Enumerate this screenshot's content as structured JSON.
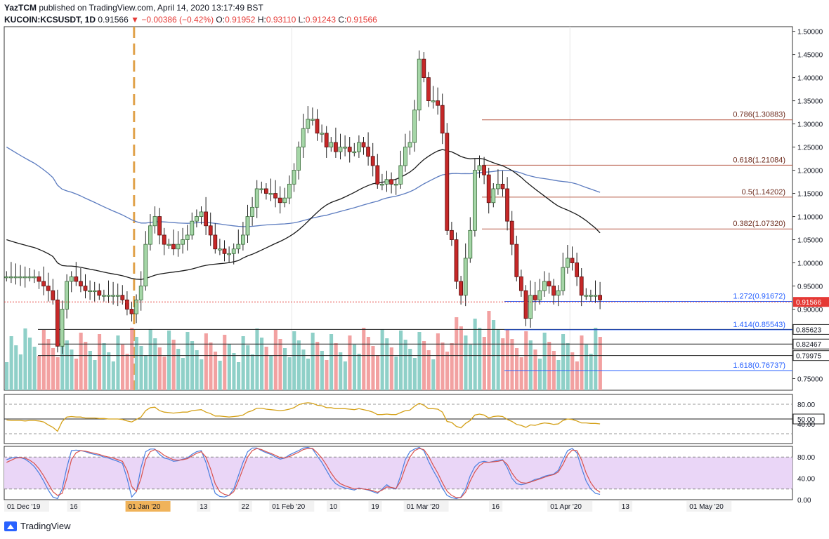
{
  "header": {
    "publisher": "YazTCM",
    "published_text": "published on TradingView.com, April 14, 2020 13:17:49 BST",
    "symbol": "KUCOIN:KCSUSDT, 1D",
    "price": "0.91566",
    "change": "−0.00386 (−0.42%)",
    "o_label": "O:",
    "o_value": "0.91952",
    "h_label": "H:",
    "h_value": "0.93110",
    "l_label": "L:",
    "l_value": "0.91243",
    "c_label": "C:",
    "c_value": "0.91566"
  },
  "footer": {
    "brand": "TradingView"
  },
  "colors": {
    "up": "#a5d6a7",
    "up_border": "#3a6b3a",
    "down": "#c62828",
    "ma1": "#1a1a1a",
    "ma2": "#5b7bbf",
    "rsi": "#d4a017",
    "fib_red": "#b85c48",
    "fib_blue": "#2962ff",
    "stoch_k": "#4a7fe0",
    "stoch_d": "#d9534f",
    "stoch_band": "#ead6f7"
  },
  "chart_data": [
    {
      "type": "candlestick",
      "title": "KCSUSDT, 1D",
      "ylim": [
        0.725,
        1.51
      ],
      "y_ticks": [
        "1.50000",
        "1.45000",
        "1.40000",
        "1.35000",
        "1.30000",
        "1.25000",
        "1.20000",
        "1.15000",
        "1.10000",
        "1.05000",
        "1.00000",
        "0.95000",
        "0.90000",
        "0.75000"
      ],
      "y_tick_values": [
        1.5,
        1.45,
        1.4,
        1.35,
        1.3,
        1.25,
        1.2,
        1.15,
        1.1,
        1.05,
        1.0,
        0.95,
        0.9,
        0.75
      ],
      "x_ticks": [
        "01 Dec '19",
        "16",
        "01 Jan '20",
        "13",
        "22",
        "01 Feb '20",
        "10",
        "19",
        "01 Mar '20",
        "16",
        "01 Apr '20",
        "13",
        "01 May '20"
      ],
      "x_tick_days": [
        0,
        15,
        31,
        43,
        52,
        62,
        71,
        80,
        91,
        106,
        122,
        134,
        152
      ],
      "x_tick_highlight": [
        false,
        false,
        true,
        false,
        false,
        false,
        false,
        false,
        false,
        false,
        false,
        false,
        false
      ],
      "price_label": "0.91566",
      "price": 0.91566,
      "horizontal_levels": [
        {
          "value": 0.85623,
          "label": "0.85623"
        },
        {
          "value": 0.82467,
          "label": "0.82467"
        },
        {
          "value": 0.79975,
          "label": "0.79975"
        }
      ],
      "fib_levels": [
        {
          "label": "0.786(1.30883)",
          "value": 1.30883,
          "color": "red"
        },
        {
          "label": "0.618(1.21084)",
          "value": 1.21084,
          "color": "red"
        },
        {
          "label": "0.5(1.14202)",
          "value": 1.14202,
          "color": "red"
        },
        {
          "label": "0.382(1.07320)",
          "value": 1.0732,
          "color": "red"
        },
        {
          "label": "1.272(0.91672)",
          "value": 0.91672,
          "color": "blue"
        },
        {
          "label": "1.414(0.85543)",
          "value": 0.85543,
          "color": "blue"
        },
        {
          "label": "1.618(0.76737)",
          "value": 0.76737,
          "color": "blue"
        }
      ],
      "candles_close": [
        0.97,
        0.97,
        0.97,
        0.97,
        0.97,
        0.97,
        0.97,
        0.96,
        0.95,
        0.94,
        0.92,
        0.82,
        0.9,
        0.96,
        0.97,
        0.96,
        0.95,
        0.94,
        0.94,
        0.94,
        0.93,
        0.93,
        0.93,
        0.93,
        0.93,
        0.92,
        0.9,
        0.89,
        0.92,
        0.95,
        1.04,
        1.08,
        1.1,
        1.06,
        1.04,
        1.04,
        1.03,
        1.04,
        1.05,
        1.06,
        1.09,
        1.1,
        1.11,
        1.08,
        1.06,
        1.03,
        1.03,
        1.02,
        1.02,
        1.03,
        1.04,
        1.06,
        1.1,
        1.12,
        1.16,
        1.16,
        1.15,
        1.15,
        1.14,
        1.13,
        1.14,
        1.17,
        1.2,
        1.25,
        1.29,
        1.31,
        1.31,
        1.28,
        1.28,
        1.25,
        1.26,
        1.24,
        1.25,
        1.25,
        1.24,
        1.24,
        1.26,
        1.25,
        1.23,
        1.21,
        1.17,
        1.17,
        1.18,
        1.17,
        1.17,
        1.21,
        1.25,
        1.26,
        1.33,
        1.44,
        1.4,
        1.35,
        1.35,
        1.34,
        1.28,
        1.07,
        1.05,
        0.96,
        0.93,
        1.01,
        1.07,
        1.2,
        1.21,
        1.19,
        1.13,
        1.16,
        1.17,
        1.16,
        1.09,
        1.04,
        0.97,
        0.94,
        0.88,
        0.93,
        0.92,
        0.94,
        0.96,
        0.95,
        0.93,
        0.94,
        0.99,
        1.01,
        1.0,
        0.97,
        0.93,
        0.93,
        0.93,
        0.93,
        0.92
      ]
    },
    {
      "type": "bar",
      "title": "Volume",
      "series_note": "volume bars coloured by candle direction"
    },
    {
      "type": "line",
      "title": "RSI",
      "ylim": [
        0,
        100
      ],
      "y_ticks": [
        "80.00",
        "50.00",
        "40.00"
      ],
      "y_tick_values": [
        80,
        50,
        40
      ],
      "level": "50.00",
      "level_value": 50,
      "values": [
        48,
        47,
        47,
        47,
        46,
        47,
        47,
        46,
        44,
        38,
        33,
        25,
        45,
        54,
        55,
        54,
        54,
        52,
        52,
        52,
        51,
        51,
        50,
        50,
        50,
        49,
        46,
        44,
        49,
        54,
        67,
        73,
        74,
        67,
        64,
        63,
        62,
        63,
        64,
        64,
        67,
        68,
        69,
        64,
        61,
        56,
        56,
        55,
        54,
        55,
        56,
        58,
        64,
        67,
        72,
        72,
        70,
        69,
        68,
        67,
        68,
        70,
        73,
        79,
        82,
        83,
        82,
        78,
        77,
        73,
        73,
        71,
        71,
        71,
        70,
        69,
        71,
        69,
        67,
        64,
        59,
        59,
        60,
        59,
        59,
        63,
        67,
        68,
        76,
        82,
        78,
        71,
        71,
        70,
        64,
        45,
        43,
        35,
        32,
        41,
        47,
        58,
        60,
        58,
        52,
        55,
        56,
        55,
        49,
        45,
        39,
        37,
        33,
        38,
        37,
        40,
        42,
        41,
        39,
        40,
        47,
        50,
        49,
        46,
        42,
        42,
        41,
        41,
        40
      ]
    },
    {
      "type": "line",
      "title": "Stoch RSI",
      "ylim": [
        0,
        100
      ],
      "y_ticks": [
        "80.00",
        "40.00",
        "0.00"
      ],
      "y_tick_values": [
        80,
        40,
        0
      ],
      "band": [
        20,
        80
      ],
      "series": [
        {
          "name": "",
          "values": [
            75,
            78,
            80,
            79,
            76,
            70,
            62,
            50,
            35,
            18,
            5,
            2,
            20,
            60,
            92,
            93,
            92,
            90,
            87,
            85,
            83,
            80,
            78,
            75,
            72,
            68,
            40,
            5,
            15,
            60,
            90,
            95,
            95,
            85,
            78,
            76,
            72,
            73,
            76,
            78,
            85,
            90,
            92,
            70,
            40,
            12,
            6,
            5,
            8,
            20,
            45,
            70,
            90,
            97,
            97,
            92,
            88,
            85,
            80,
            76,
            78,
            84,
            88,
            92,
            97,
            98,
            95,
            82,
            70,
            55,
            40,
            30,
            25,
            22,
            20,
            18,
            22,
            20,
            18,
            15,
            12,
            20,
            28,
            22,
            20,
            45,
            75,
            90,
            95,
            98,
            92,
            72,
            55,
            40,
            22,
            8,
            4,
            2,
            5,
            20,
            45,
            62,
            70,
            72,
            70,
            72,
            74,
            75,
            60,
            40,
            30,
            28,
            30,
            34,
            38,
            40,
            44,
            46,
            48,
            55,
            75,
            92,
            96,
            88,
            60,
            35,
            20,
            12,
            10
          ]
        },
        {
          "name": "",
          "values": [
            70,
            74,
            78,
            79,
            78,
            74,
            68,
            58,
            45,
            30,
            15,
            8,
            12,
            40,
            75,
            88,
            92,
            91,
            89,
            87,
            85,
            82,
            80,
            78,
            75,
            72,
            55,
            25,
            15,
            40,
            75,
            90,
            94,
            90,
            83,
            79,
            75,
            74,
            75,
            77,
            82,
            87,
            90,
            80,
            58,
            30,
            15,
            10,
            8,
            15,
            35,
            58,
            80,
            92,
            96,
            94,
            90,
            87,
            83,
            79,
            78,
            81,
            85,
            89,
            94,
            96,
            96,
            88,
            78,
            65,
            50,
            38,
            30,
            26,
            23,
            20,
            21,
            20,
            19,
            17,
            14,
            18,
            24,
            23,
            21,
            35,
            60,
            80,
            92,
            96,
            94,
            82,
            65,
            50,
            32,
            16,
            8,
            4,
            4,
            14,
            35,
            52,
            64,
            70,
            70,
            71,
            72,
            74,
            66,
            50,
            38,
            32,
            31,
            33,
            36,
            39,
            42,
            45,
            47,
            52,
            66,
            84,
            93,
            92,
            75,
            50,
            32,
            20,
            14
          ]
        }
      ]
    }
  ]
}
